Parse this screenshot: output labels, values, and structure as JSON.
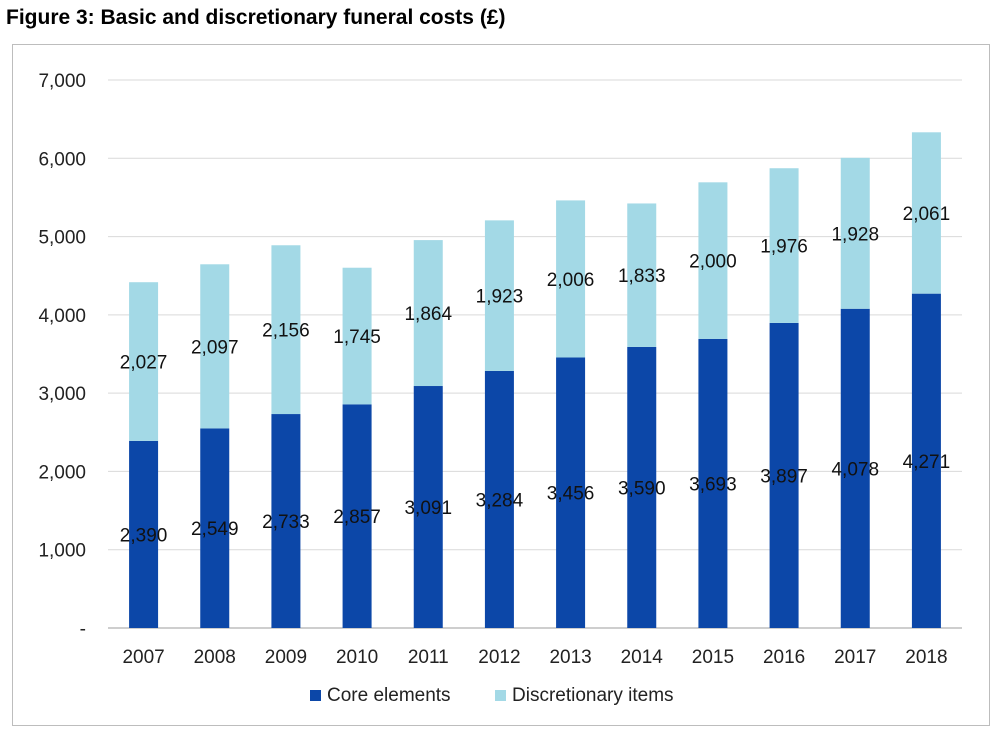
{
  "figure_title": "Figure 3: Basic and discretionary funeral costs (£)",
  "chart_data": {
    "type": "bar",
    "stacked": true,
    "categories": [
      "2007",
      "2008",
      "2009",
      "2010",
      "2011",
      "2012",
      "2013",
      "2014",
      "2015",
      "2016",
      "2017",
      "2018"
    ],
    "series": [
      {
        "name": "Core elements",
        "color": "#0c47a8",
        "values": [
          2390,
          2549,
          2733,
          2857,
          3091,
          3284,
          3456,
          3590,
          3693,
          3897,
          4078,
          4271
        ],
        "labels": [
          "2,390",
          "2,549",
          "2,733",
          "2,857",
          "3,091",
          "3,284",
          "3,456",
          "3,590",
          "3,693",
          "3,897",
          "4,078",
          "4,271"
        ]
      },
      {
        "name": "Discretionary items",
        "color": "#a3d9e6",
        "values": [
          2027,
          2097,
          2156,
          1745,
          1864,
          1923,
          2006,
          1833,
          2000,
          1976,
          1928,
          2061
        ],
        "labels": [
          "2,027",
          "2,097",
          "2,156",
          "1,745",
          "1,864",
          "1,923",
          "2,006",
          "1,833",
          "2,000",
          "1,976",
          "1,928",
          "2,061"
        ]
      }
    ],
    "ylim": [
      0,
      7000
    ],
    "yticks": [
      0,
      1000,
      2000,
      3000,
      4000,
      5000,
      6000,
      7000
    ],
    "ytick_labels": [
      "-",
      "1,000",
      "2,000",
      "3,000",
      "4,000",
      "5,000",
      "6,000",
      "7,000"
    ],
    "grid": true,
    "legend_position": "bottom"
  }
}
